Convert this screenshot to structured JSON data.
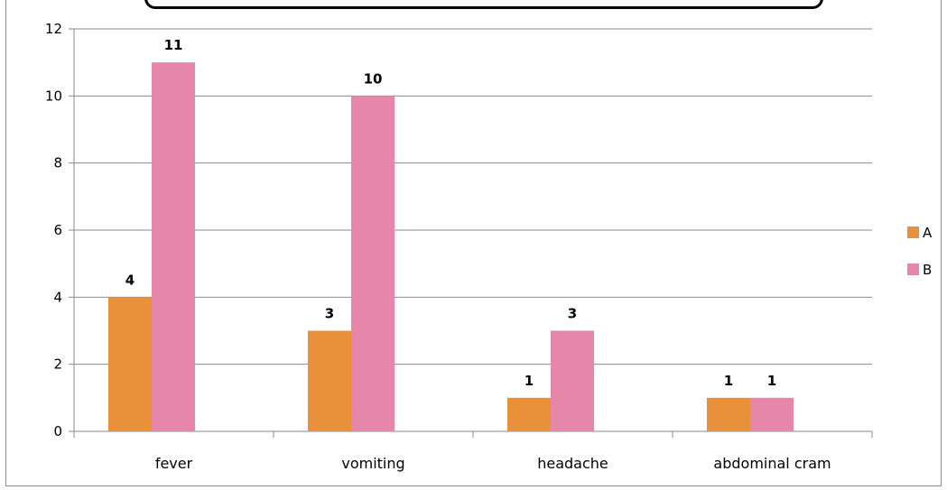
{
  "chart_data": {
    "type": "bar",
    "categories": [
      "fever",
      "vomiting",
      "headache",
      "abdominal cram"
    ],
    "series": [
      {
        "name": "A",
        "values": [
          4,
          3,
          1,
          1
        ],
        "color": "#E8913A"
      },
      {
        "name": "B",
        "values": [
          11,
          10,
          3,
          1
        ],
        "color": "#E686A8"
      }
    ],
    "ylim": [
      0,
      12
    ],
    "yticks": [
      "0",
      "2",
      "4",
      "6",
      "8",
      "10",
      "12"
    ],
    "grid": true,
    "legend_position": "right",
    "data_labels": true
  }
}
